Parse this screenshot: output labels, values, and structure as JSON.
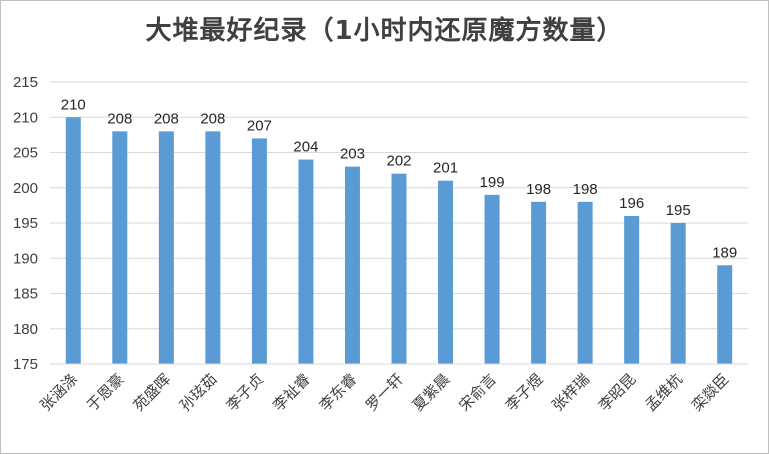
{
  "chart_data": {
    "type": "bar",
    "title": "大堆最好纪录（1小时内还原魔方数量）",
    "categories": [
      "张涵涤",
      "于恩豪",
      "苑盛晖",
      "孙玹茹",
      "李子贞",
      "李祉睿",
      "李东睿",
      "罗一轩",
      "夏紫晨",
      "宋俞言",
      "李子煜",
      "张梓瑞",
      "李昭昆",
      "孟维杭",
      "栾燚臣"
    ],
    "values": [
      210,
      208,
      208,
      208,
      207,
      204,
      203,
      202,
      201,
      199,
      198,
      198,
      196,
      195,
      189
    ],
    "ylim": [
      175,
      215
    ],
    "yticks": [
      175,
      180,
      185,
      190,
      195,
      200,
      205,
      210,
      215
    ],
    "grid": true,
    "legend": "none",
    "bar_color": "#5b9bd5",
    "grid_color": "#d9d9d9"
  }
}
